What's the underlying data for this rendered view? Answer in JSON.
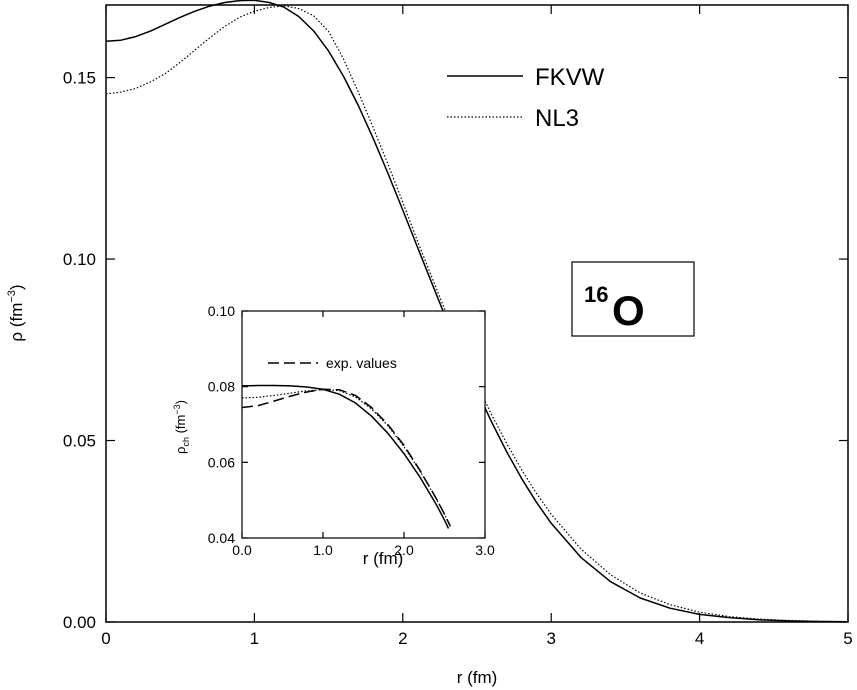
{
  "chart_data": [
    {
      "type": "line",
      "title": "",
      "xlabel": "r (fm)",
      "ylabel_main": "ρ (fm",
      "ylabel_sup": "−3",
      "ylabel_close": ")",
      "xlim": [
        0,
        5
      ],
      "ylim": [
        0,
        0.17
      ],
      "xticks": [
        0,
        1,
        2,
        3,
        4,
        5
      ],
      "xtick_labels": [
        "0",
        "1",
        "2",
        "3",
        "4",
        "5"
      ],
      "yticks": [
        0.0,
        0.05,
        0.1,
        0.15
      ],
      "ytick_labels": [
        "0.00",
        "0.05",
        "0.10",
        "0.15"
      ],
      "grid": false,
      "legend_position": "top-right",
      "annotation": {
        "mass": "16",
        "element": "O"
      },
      "series": [
        {
          "name": "FKVW",
          "style": "solid",
          "x": [
            0,
            0.1,
            0.2,
            0.3,
            0.4,
            0.5,
            0.6,
            0.7,
            0.8,
            0.9,
            1.0,
            1.1,
            1.2,
            1.3,
            1.4,
            1.5,
            1.6,
            1.7,
            1.8,
            1.9,
            2.0,
            2.1,
            2.2,
            2.3,
            2.4,
            2.5,
            2.6,
            2.7,
            2.8,
            2.9,
            3.0,
            3.2,
            3.4,
            3.6,
            3.8,
            4.0,
            4.2,
            4.4,
            4.6,
            4.8,
            5.0
          ],
          "y": [
            0.16,
            0.1603,
            0.1613,
            0.1628,
            0.1647,
            0.1666,
            0.1683,
            0.1697,
            0.1707,
            0.1712,
            0.1713,
            0.1707,
            0.1694,
            0.1668,
            0.1628,
            0.1573,
            0.1504,
            0.1423,
            0.1333,
            0.1236,
            0.1135,
            0.1032,
            0.0929,
            0.0828,
            0.073,
            0.0637,
            0.055,
            0.0469,
            0.0396,
            0.033,
            0.0272,
            0.0178,
            0.0111,
            0.0066,
            0.0038,
            0.0021,
            0.0012,
            0.0006,
            0.0003,
            0.00015,
            8e-05
          ]
        },
        {
          "name": "NL3",
          "style": "dotted",
          "x": [
            0,
            0.1,
            0.2,
            0.3,
            0.4,
            0.5,
            0.6,
            0.7,
            0.8,
            0.9,
            1.0,
            1.1,
            1.2,
            1.3,
            1.4,
            1.5,
            1.6,
            1.7,
            1.8,
            1.9,
            2.0,
            2.1,
            2.2,
            2.3,
            2.4,
            2.5,
            2.6,
            2.7,
            2.8,
            2.9,
            3.0,
            3.2,
            3.4,
            3.6,
            3.8,
            4.0,
            4.2,
            4.4,
            4.6,
            4.8,
            5.0
          ],
          "y": [
            0.1455,
            0.146,
            0.147,
            0.1488,
            0.1511,
            0.1542,
            0.1576,
            0.161,
            0.1641,
            0.1666,
            0.1683,
            0.1693,
            0.1698,
            0.169,
            0.167,
            0.1627,
            0.1552,
            0.146,
            0.1363,
            0.1261,
            0.1156,
            0.1049,
            0.0945,
            0.0844,
            0.0746,
            0.0655,
            0.057,
            0.0492,
            0.042,
            0.0355,
            0.0297,
            0.0201,
            0.013,
            0.008,
            0.0048,
            0.0027,
            0.0015,
            0.0008,
            0.0004,
            0.0002,
            0.0001
          ]
        }
      ]
    },
    {
      "type": "line",
      "title": "",
      "xlabel": "r (fm)",
      "ylabel_main": "ρ",
      "ylabel_sub": "ch",
      "ylabel_unit": " (fm",
      "ylabel_sup": "−3",
      "ylabel_close": ")",
      "xlim": [
        0,
        3.0
      ],
      "ylim": [
        0.04,
        0.1
      ],
      "xticks": [
        0,
        1.0,
        2.0,
        3.0
      ],
      "xtick_labels": [
        "0.0",
        "1.0",
        "2.0",
        "3.0"
      ],
      "yticks": [
        0.04,
        0.06,
        0.08,
        0.1
      ],
      "ytick_labels": [
        "0.04",
        "0.06",
        "0.08",
        "0.10"
      ],
      "grid": false,
      "legend_position": "top-left",
      "series": [
        {
          "name": "",
          "style": "solid",
          "x": [
            0,
            0.2,
            0.4,
            0.6,
            0.8,
            1.0,
            1.2,
            1.4,
            1.6,
            1.8,
            2.0,
            2.2,
            2.4,
            2.5,
            2.55
          ],
          "y": [
            0.0802,
            0.0803,
            0.0803,
            0.0802,
            0.0799,
            0.0793,
            0.078,
            0.0757,
            0.0722,
            0.0677,
            0.0623,
            0.056,
            0.0488,
            0.0447,
            0.0425
          ]
        },
        {
          "name": "",
          "style": "dotted",
          "x": [
            0,
            0.2,
            0.4,
            0.6,
            0.8,
            1.0,
            1.2,
            1.4,
            1.6,
            1.8,
            2.0,
            2.2,
            2.4,
            2.5,
            2.57
          ],
          "y": [
            0.077,
            0.0772,
            0.0777,
            0.0783,
            0.0789,
            0.0792,
            0.079,
            0.0773,
            0.0741,
            0.0697,
            0.0641,
            0.0576,
            0.0503,
            0.0462,
            0.043
          ]
        },
        {
          "name": "exp. values",
          "style": "dashed",
          "x": [
            0,
            0.2,
            0.4,
            0.6,
            0.8,
            1.0,
            1.2,
            1.4,
            1.6,
            1.8,
            2.0,
            2.2,
            2.4,
            2.5,
            2.57
          ],
          "y": [
            0.0745,
            0.075,
            0.0762,
            0.0775,
            0.0786,
            0.0793,
            0.0792,
            0.0777,
            0.0745,
            0.07,
            0.0645,
            0.0578,
            0.0504,
            0.0463,
            0.0432
          ]
        }
      ]
    }
  ]
}
